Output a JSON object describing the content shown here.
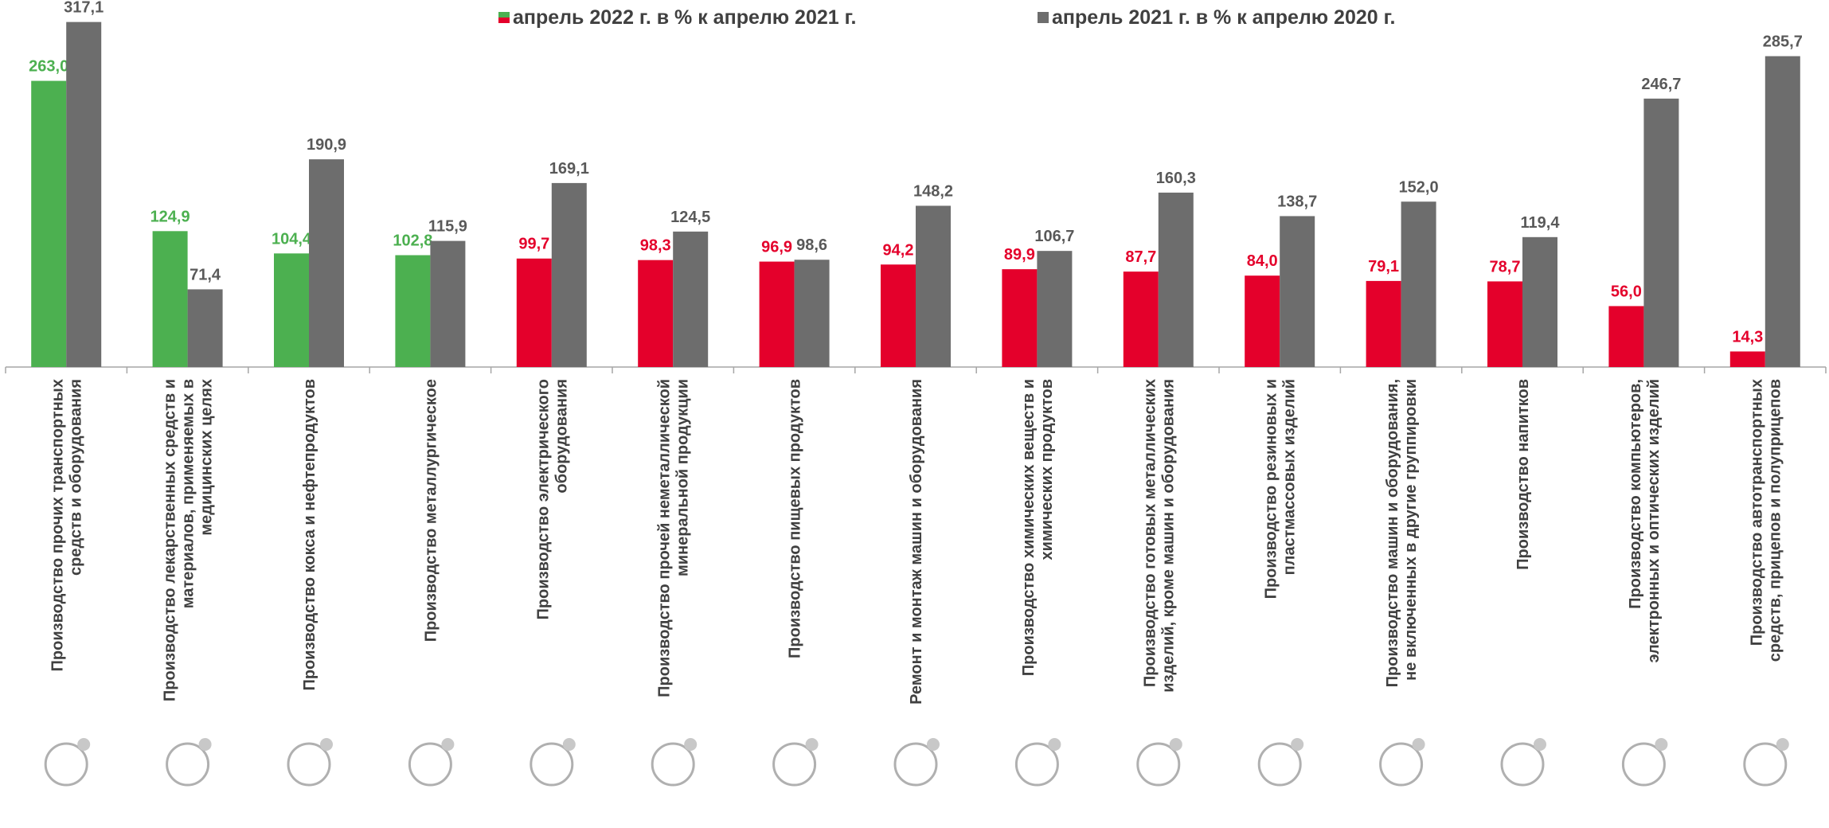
{
  "chart_data": {
    "type": "bar",
    "categories": [
      "Производство прочих транспортных средств и оборудования",
      "Производство лекарственных средств и материалов, применяемых в медицинских целях",
      "Производство кокса и нефтепродуктов",
      "Производство металлургическое",
      "Производство электрического оборудования",
      "Производство прочей неметаллической минеральной продукции",
      "Производство пищевых продуктов",
      "Ремонт и монтаж машин и оборудования",
      "Производство химических веществ и химических продуктов",
      "Производство готовых металлических изделий, кроме машин и оборудования",
      "Производство резиновых и пластмассовых изделий",
      "Производство машин и оборудования, не включенных в другие группировки",
      "Производство напитков",
      "Производство компьютеров, электронных и оптических изделий",
      "Производство автотранспортных средств, прицепов и полуприцепов"
    ],
    "series": [
      {
        "name": "апрель 2022 г. в % к апрелю 2021 г.",
        "colors": [
          "#4cb050",
          "#4cb050",
          "#4cb050",
          "#4cb050",
          "#e4002b",
          "#e4002b",
          "#e4002b",
          "#e4002b",
          "#e4002b",
          "#e4002b",
          "#e4002b",
          "#e4002b",
          "#e4002b",
          "#e4002b",
          "#e4002b"
        ],
        "values": [
          263.0,
          124.9,
          104.4,
          102.8,
          99.7,
          98.3,
          96.9,
          94.2,
          89.9,
          87.7,
          84.0,
          79.1,
          78.7,
          56.0,
          14.3
        ],
        "value_labels": [
          "263,0",
          "124,9",
          "104,4",
          "102,8",
          "99,7",
          "98,3",
          "96,9",
          "94,2",
          "89,9",
          "87,7",
          "84,0",
          "79,1",
          "78,7",
          "56,0",
          "14,3"
        ]
      },
      {
        "name": "апрель 2021 г. в % к апрелю 2020 г.",
        "color": "#6d6d6d",
        "values": [
          317.1,
          71.4,
          190.9,
          115.9,
          169.1,
          124.5,
          98.6,
          148.2,
          106.7,
          160.3,
          138.7,
          152.0,
          119.4,
          246.7,
          285.7
        ],
        "value_labels": [
          "317,1",
          "71,4",
          "190,9",
          "115,9",
          "169,1",
          "124,5",
          "98,6",
          "148,2",
          "106,7",
          "160,3",
          "138,7",
          "152,0",
          "119,4",
          "246,7",
          "285,7"
        ]
      }
    ],
    "ylim": [
      0,
      330
    ],
    "legend": "top"
  }
}
